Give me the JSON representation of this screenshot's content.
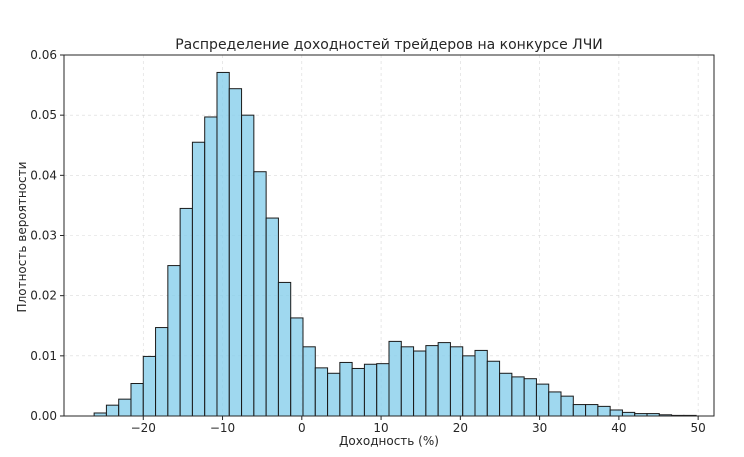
{
  "chart_data": {
    "type": "bar",
    "title": "Распределение доходностей трейдеров на конкурсе ЛЧИ",
    "xlabel": "Доходность (%)",
    "ylabel": "Плотность вероятности",
    "xlim": [
      -30,
      52
    ],
    "ylim": [
      0,
      0.06
    ],
    "grid": true,
    "bin_width": 1.55,
    "bin_start": -26.2,
    "values": [
      0.0005,
      0.0018,
      0.0028,
      0.0054,
      0.0099,
      0.0147,
      0.025,
      0.0345,
      0.0455,
      0.0497,
      0.0571,
      0.0544,
      0.05,
      0.0406,
      0.0329,
      0.0222,
      0.0163,
      0.0115,
      0.008,
      0.0071,
      0.0089,
      0.0079,
      0.0086,
      0.0087,
      0.0124,
      0.0115,
      0.0108,
      0.0117,
      0.0122,
      0.0115,
      0.01,
      0.0109,
      0.0091,
      0.0071,
      0.0065,
      0.0062,
      0.0053,
      0.004,
      0.0033,
      0.0019,
      0.0019,
      0.0016,
      0.001,
      0.0006,
      0.0004,
      0.0004,
      0.0002,
      0.0001,
      0.0001
    ],
    "xticks": [
      -20,
      -10,
      0,
      10,
      20,
      30,
      40,
      50
    ],
    "xtick_labels": [
      "−20",
      "−10",
      "0",
      "10",
      "20",
      "30",
      "40",
      "50"
    ],
    "yticks": [
      0,
      0.01,
      0.02,
      0.03,
      0.04,
      0.05,
      0.06
    ],
    "ytick_labels": [
      "0.00",
      "0.01",
      "0.02",
      "0.03",
      "0.04",
      "0.05",
      "0.06"
    ]
  }
}
